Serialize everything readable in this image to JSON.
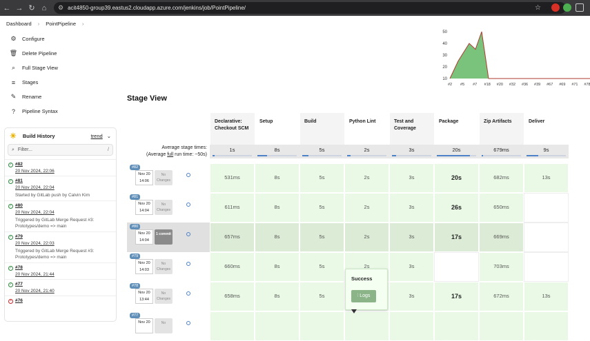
{
  "browser": {
    "url": "acit4850-group39.eastus2.cloudapp.azure.com/jenkins/job/PointPipeline/"
  },
  "breadcrumb": {
    "home": "Dashboard",
    "job": "PointPipeline"
  },
  "sidebar": {
    "tasks": [
      {
        "label": "Configure",
        "icon": "gear-icon"
      },
      {
        "label": "Delete Pipeline",
        "icon": "trash-icon"
      },
      {
        "label": "Full Stage View",
        "icon": "search-icon"
      },
      {
        "label": "Stages",
        "icon": "database-icon"
      },
      {
        "label": "Rename",
        "icon": "pencil-icon"
      },
      {
        "label": "Pipeline Syntax",
        "icon": "help-icon"
      }
    ]
  },
  "build_history": {
    "title": "Build History",
    "trend": "trend",
    "filter_placeholder": "Filter...",
    "filter_shortcut": "/",
    "builds": [
      {
        "num": "#82",
        "date": "20 Nov 2024, 22:06",
        "note": "",
        "status": "success"
      },
      {
        "num": "#81",
        "date": "20 Nov 2024, 22:04",
        "note": "Started by GitLab push by Calvin Kim",
        "status": "success"
      },
      {
        "num": "#80",
        "date": "20 Nov 2024, 22:04",
        "note": "Triggered by GitLab Merge Request #3: Prototypes/demo => main",
        "status": "success"
      },
      {
        "num": "#79",
        "date": "20 Nov 2024, 22:03",
        "note": "Triggered by GitLab Merge Request #3: Prototypes/demo => main",
        "status": "success"
      },
      {
        "num": "#78",
        "date": "20 Nov 2024, 21:44",
        "note": "",
        "status": "success"
      },
      {
        "num": "#77",
        "date": "20 Nov 2024, 21:40",
        "note": "",
        "status": "success"
      },
      {
        "num": "#76",
        "date": "",
        "note": "",
        "status": "failed"
      }
    ]
  },
  "trend_chart": {
    "chart_data": {
      "type": "area",
      "y_ticks": [
        10,
        20,
        30,
        40,
        50
      ],
      "x_tick_labels": [
        "#2",
        "#5",
        "#7",
        "#18",
        "#20",
        "#32",
        "#36",
        "#39",
        "#67",
        "#69",
        "#71",
        "#78"
      ],
      "ylim": [
        10,
        50
      ],
      "color": "#4caf50"
    }
  },
  "stage_view": {
    "title": "Stage View",
    "avg_label_line1": "Average stage times:",
    "avg_label_line2_prefix": "(Average ",
    "avg_label_full": "full",
    "avg_label_line2_suffix": " run time: ~50s)",
    "stages": [
      {
        "name": "Declarative: Checkout SCM",
        "avg": "1s",
        "avg_fill": 0.05
      },
      {
        "name": "Setup",
        "avg": "8s",
        "avg_fill": 0.25
      },
      {
        "name": "Build",
        "avg": "5s",
        "avg_fill": 0.15
      },
      {
        "name": "Python Lint",
        "avg": "2s",
        "avg_fill": 0.08
      },
      {
        "name": "Test and Coverage",
        "avg": "3s",
        "avg_fill": 0.1
      },
      {
        "name": "Package",
        "avg": "20s",
        "avg_fill": 0.85
      },
      {
        "name": "Zip Artifacts",
        "avg": "679ms",
        "avg_fill": 0.03
      },
      {
        "name": "Deliver",
        "avg": "9s",
        "avg_fill": 0.3
      }
    ],
    "runs": [
      {
        "tag": "#82",
        "month_day": "Nov 20",
        "time": "14:06",
        "changes": "No Changes",
        "commit": false,
        "cells": [
          "531ms",
          "8s",
          "5s",
          "2s",
          "3s",
          "20s",
          "682ms",
          "13s"
        ]
      },
      {
        "tag": "#81",
        "month_day": "Nov 20",
        "time": "14:04",
        "changes": "No Changes",
        "commit": false,
        "cells": [
          "611ms",
          "8s",
          "5s",
          "2s",
          "3s",
          "26s",
          "650ms",
          ""
        ]
      },
      {
        "tag": "#80",
        "month_day": "Nov 20",
        "time": "14:04",
        "changes": "1 commit",
        "commit": true,
        "cells": [
          "657ms",
          "8s",
          "5s",
          "2s",
          "3s",
          "17s",
          "669ms",
          ""
        ]
      },
      {
        "tag": "#79",
        "month_day": "Nov 20",
        "time": "14:03",
        "changes": "No Changes",
        "commit": false,
        "cells": [
          "660ms",
          "8s",
          "5s",
          "2s",
          "3s",
          "",
          "703ms",
          ""
        ]
      },
      {
        "tag": "#78",
        "month_day": "Nov 20",
        "time": "13:44",
        "changes": "No Changes",
        "commit": false,
        "cells": [
          "658ms",
          "8s",
          "5s",
          "",
          "3s",
          "17s",
          "672ms",
          "13s"
        ]
      },
      {
        "tag": "#77",
        "month_day": "Nov 20",
        "time": "",
        "changes": "No",
        "commit": false,
        "cells": [
          "",
          "",
          "",
          "",
          "",
          "",
          "",
          ""
        ]
      }
    ],
    "popup": {
      "title": "Success",
      "logs": "Logs"
    }
  }
}
